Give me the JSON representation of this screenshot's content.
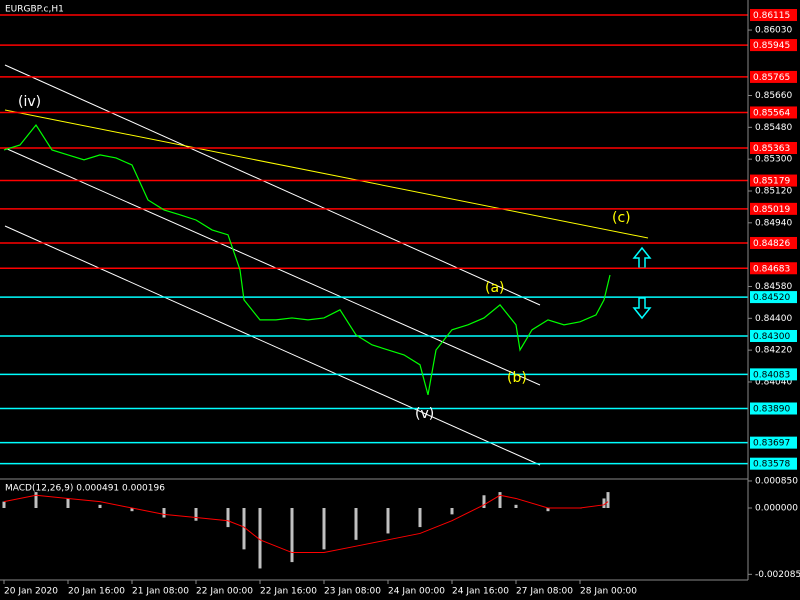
{
  "chart_data": [
    {
      "type": "line",
      "title": "EURGBP.c,H1",
      "x": [
        0,
        4,
        8,
        12,
        16,
        20,
        24,
        28,
        32,
        36,
        40,
        44,
        48,
        52,
        56,
        59,
        60,
        64,
        68,
        72,
        76,
        80,
        84,
        88,
        92,
        96,
        100,
        104,
        106,
        108,
        112,
        116,
        120,
        124,
        128,
        129,
        132,
        136,
        140,
        144,
        148,
        150,
        151.5
      ],
      "series": [
        {
          "color": "#00ff00",
          "values": [
            0.85352,
            0.8538,
            0.85493,
            0.85352,
            0.85324,
            0.85296,
            0.85324,
            0.85307,
            0.85267,
            0.85069,
            0.85013,
            0.84985,
            0.84956,
            0.849,
            0.84872,
            0.84674,
            0.84504,
            0.84391,
            0.84391,
            0.84402,
            0.84391,
            0.84402,
            0.84448,
            0.84306,
            0.8425,
            0.84221,
            0.84193,
            0.84137,
            0.83967,
            0.84221,
            0.84335,
            0.84363,
            0.84402,
            0.84476,
            0.84363,
            0.84221,
            0.84335,
            0.84391,
            0.84363,
            0.8438,
            0.84419,
            0.84504,
            0.84645
          ]
        }
      ],
      "xlim": [
        -1,
        186
      ],
      "xticks": [
        {
          "value": 0,
          "label": "20 Jan 2020"
        },
        {
          "value": 16,
          "label": "20 Jan 16:00"
        },
        {
          "value": 32,
          "label": "21 Jan 08:00"
        },
        {
          "value": 48,
          "label": "22 Jan 00:00"
        },
        {
          "value": 64,
          "label": "22 Jan 16:00"
        },
        {
          "value": 80,
          "label": "23 Jan 08:00"
        },
        {
          "value": 96,
          "label": "24 Jan 00:00"
        },
        {
          "value": 112,
          "label": "24 Jan 16:00"
        },
        {
          "value": 128,
          "label": "27 Jan 08:00"
        },
        {
          "value": 144,
          "label": "28 Jan 00:00"
        }
      ],
      "ylim": [
        0.83497,
        0.862
      ],
      "yticks": [
        {
          "value": 0.8603,
          "label": "0.86030"
        },
        {
          "value": 0.8566,
          "label": "0.85660"
        },
        {
          "value": 0.8548,
          "label": "0.85480"
        },
        {
          "value": 0.853,
          "label": "0.85300"
        },
        {
          "value": 0.8512,
          "label": "0.85120"
        },
        {
          "value": 0.8494,
          "label": "0.84940"
        },
        {
          "value": 0.8458,
          "label": "0.84580"
        },
        {
          "value": 0.844,
          "label": "0.84400"
        },
        {
          "value": 0.8422,
          "label": "0.84220"
        },
        {
          "value": 0.8404,
          "label": "0.84040"
        }
      ],
      "levels": [
        {
          "value": 0.86115,
          "color": "#ff0000"
        },
        {
          "value": 0.85945,
          "color": "#ff0000"
        },
        {
          "value": 0.85765,
          "color": "#ff0000"
        },
        {
          "value": 0.85564,
          "color": "#ff0000"
        },
        {
          "value": 0.85363,
          "color": "#ff0000"
        },
        {
          "value": 0.85179,
          "color": "#ff0000"
        },
        {
          "value": 0.85019,
          "color": "#ff0000"
        },
        {
          "value": 0.84826,
          "color": "#ff0000"
        },
        {
          "value": 0.84683,
          "color": "#ff0000"
        },
        {
          "value": {
            "value": 0.8452,
            "label": "0.84520"
          },
          "color": "#00ffff"
        },
        {
          "value": {
            "value": 0.843,
            "label": "0.84300"
          },
          "color": "#00ffff"
        },
        {
          "value": 0.84083,
          "color": "#00ffff"
        },
        {
          "value": {
            "value": 0.8389,
            "label": "0.83890"
          },
          "color": "#00ffff"
        },
        {
          "value": 0.83697,
          "color": "#00ffff"
        },
        {
          "value": 0.83578,
          "color": "#00ffff"
        }
      ],
      "annotations": [
        "(iv)",
        "(v)",
        "(a)",
        "(b)",
        "(c)"
      ]
    },
    {
      "type": "bar",
      "title": "MACD(12,26,9) 0.000491 0.000196",
      "x": [
        0,
        8,
        16,
        24,
        32,
        40,
        48,
        56,
        60,
        64,
        72,
        80,
        88,
        96,
        104,
        112,
        120,
        124,
        128,
        136,
        144,
        150,
        151
      ],
      "series": [
        {
          "color": "#c0c0c0",
          "values": [
            0.0002,
            0.0005,
            0.0003,
            0.0001,
            -0.0001,
            -0.0003,
            -0.0004,
            -0.0006,
            -0.0013,
            -0.0019,
            -0.0017,
            -0.0013,
            -0.001,
            -0.0008,
            -0.0006,
            -0.0002,
            0.0004,
            0.0005,
            0.0001,
            -0.0001,
            0,
            0.0003,
            0.0005
          ]
        },
        {
          "color": "#ff0000",
          "values": [
            0.0002,
            0.0004,
            0.0003,
            0.0002,
            0,
            -0.0002,
            -0.0003,
            -0.0004,
            -0.0006,
            -0.001,
            -0.0014,
            -0.0014,
            -0.0012,
            -0.001,
            -0.0008,
            -0.0004,
            0.0001,
            0.0004,
            0.0003,
            0,
            0,
            0.0001,
            0.0002
          ]
        }
      ],
      "ylim": [
        -0.0022,
        0.00088
      ],
      "yticks": [
        {
          "value": 0.00085,
          "label": "0.000850"
        },
        {
          "value": 0,
          "label": "0.000000"
        },
        {
          "value": -0.002085,
          "label": "-0.002085"
        }
      ]
    }
  ]
}
